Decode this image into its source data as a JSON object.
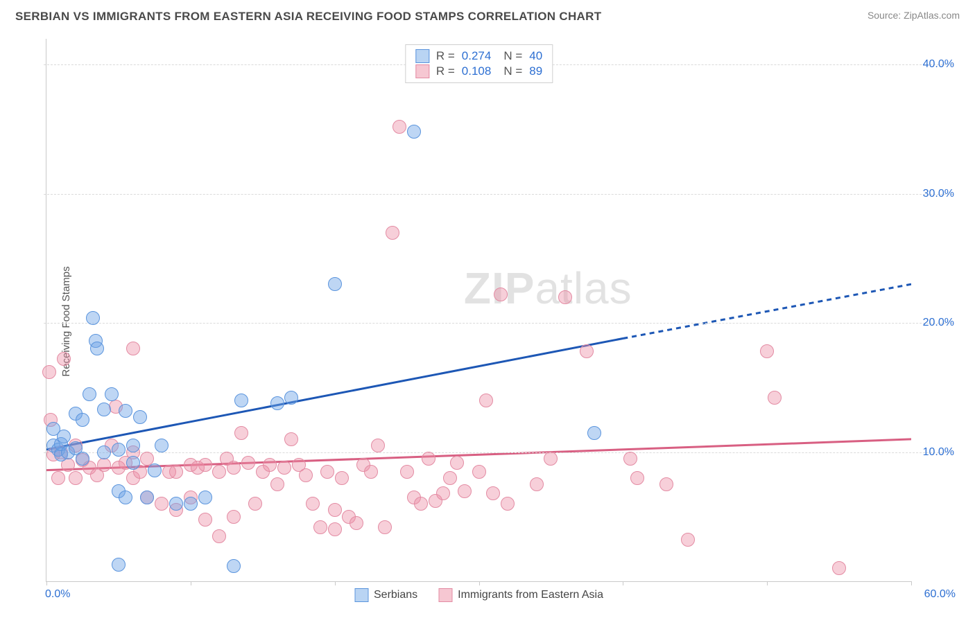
{
  "header": {
    "title": "SERBIAN VS IMMIGRANTS FROM EASTERN ASIA RECEIVING FOOD STAMPS CORRELATION CHART",
    "source": "Source: ZipAtlas.com"
  },
  "chart": {
    "type": "scatter",
    "y_axis_label": "Receiving Food Stamps",
    "watermark_bold": "ZIP",
    "watermark_light": "atlas",
    "background_color": "#ffffff",
    "grid_color": "#dadada",
    "axis_color": "#c9c9c9",
    "tick_label_color": "#2d6fd2",
    "xlim": [
      0,
      60
    ],
    "ylim": [
      0,
      42
    ],
    "ytick_values": [
      10,
      20,
      30,
      40
    ],
    "ytick_labels": [
      "10.0%",
      "20.0%",
      "30.0%",
      "40.0%"
    ],
    "xtick_values": [
      0,
      10,
      20,
      30,
      40,
      50,
      60
    ],
    "xmin_label": "0.0%",
    "xmax_label": "60.0%",
    "legend_top": [
      {
        "swatch_fill": "#b9d4f3",
        "swatch_border": "#5a94dd",
        "R": "0.274",
        "N": "40"
      },
      {
        "swatch_fill": "#f6c7d2",
        "swatch_border": "#e38ba3",
        "R": "0.108",
        "N": "89"
      }
    ],
    "legend_bottom": [
      {
        "swatch_fill": "#b9d4f3",
        "swatch_border": "#5a94dd",
        "label": "Serbians"
      },
      {
        "swatch_fill": "#f6c7d2",
        "swatch_border": "#e38ba3",
        "label": "Immigrants from Eastern Asia"
      }
    ],
    "series": [
      {
        "name": "Serbians",
        "dot_fill": "rgba(110,165,230,0.45)",
        "dot_border": "#5a94dd",
        "dot_radius": 10,
        "trend_color": "#1d57b5",
        "trend_width": 3,
        "trend_solid": {
          "x1": 0,
          "y1": 10.2,
          "x2": 40,
          "y2": 18.8
        },
        "trend_dash": {
          "x1": 40,
          "y1": 18.8,
          "x2": 60,
          "y2": 23.0
        },
        "points": [
          [
            0.5,
            10.5
          ],
          [
            0.8,
            10.2
          ],
          [
            1.0,
            9.8
          ],
          [
            1.0,
            10.6
          ],
          [
            1.2,
            11.2
          ],
          [
            1.5,
            10.0
          ],
          [
            0.5,
            11.8
          ],
          [
            2.0,
            10.3
          ],
          [
            2.0,
            13.0
          ],
          [
            2.5,
            12.5
          ],
          [
            2.5,
            9.5
          ],
          [
            3.0,
            14.5
          ],
          [
            3.2,
            20.4
          ],
          [
            3.4,
            18.6
          ],
          [
            3.5,
            18.0
          ],
          [
            4.0,
            13.3
          ],
          [
            4.0,
            10.0
          ],
          [
            4.5,
            14.5
          ],
          [
            5.0,
            7.0
          ],
          [
            5.0,
            10.2
          ],
          [
            5.0,
            1.3
          ],
          [
            5.5,
            13.2
          ],
          [
            5.5,
            6.5
          ],
          [
            6.0,
            10.5
          ],
          [
            6.0,
            9.2
          ],
          [
            6.5,
            12.7
          ],
          [
            7.0,
            6.5
          ],
          [
            7.5,
            8.6
          ],
          [
            8.0,
            10.5
          ],
          [
            9.0,
            6.0
          ],
          [
            10.0,
            6.0
          ],
          [
            11.0,
            6.5
          ],
          [
            13.0,
            1.2
          ],
          [
            13.5,
            14.0
          ],
          [
            16.0,
            13.8
          ],
          [
            17.0,
            14.2
          ],
          [
            20.0,
            23.0
          ],
          [
            25.5,
            34.8
          ],
          [
            38.0,
            11.5
          ]
        ]
      },
      {
        "name": "Immigrants from Eastern Asia",
        "dot_fill": "rgba(235,140,165,0.42)",
        "dot_border": "#e38ba3",
        "dot_radius": 10,
        "trend_color": "#d85f82",
        "trend_width": 3,
        "trend_solid": {
          "x1": 0,
          "y1": 8.6,
          "x2": 60,
          "y2": 11.0
        },
        "trend_dash": null,
        "points": [
          [
            0.2,
            16.2
          ],
          [
            0.3,
            12.5
          ],
          [
            0.5,
            9.8
          ],
          [
            0.8,
            8.0
          ],
          [
            1.0,
            10.0
          ],
          [
            1.2,
            17.2
          ],
          [
            1.5,
            9.0
          ],
          [
            2.0,
            10.5
          ],
          [
            2.0,
            8.0
          ],
          [
            2.5,
            9.4
          ],
          [
            3.0,
            8.8
          ],
          [
            3.5,
            8.2
          ],
          [
            4.0,
            9.0
          ],
          [
            4.5,
            10.5
          ],
          [
            4.8,
            13.5
          ],
          [
            5.0,
            8.8
          ],
          [
            5.5,
            9.2
          ],
          [
            6.0,
            8.0
          ],
          [
            6.0,
            10.0
          ],
          [
            6.0,
            18.0
          ],
          [
            6.5,
            8.5
          ],
          [
            7.0,
            6.5
          ],
          [
            7.0,
            9.5
          ],
          [
            8.0,
            6.0
          ],
          [
            8.5,
            8.5
          ],
          [
            9.0,
            5.5
          ],
          [
            9.0,
            8.5
          ],
          [
            10.0,
            9.0
          ],
          [
            10.0,
            6.5
          ],
          [
            10.5,
            8.8
          ],
          [
            11.0,
            9.0
          ],
          [
            11.0,
            4.8
          ],
          [
            12.0,
            8.5
          ],
          [
            12.0,
            3.5
          ],
          [
            12.5,
            9.5
          ],
          [
            13.0,
            8.8
          ],
          [
            13.0,
            5.0
          ],
          [
            13.5,
            11.5
          ],
          [
            14.0,
            9.2
          ],
          [
            14.5,
            6.0
          ],
          [
            15.0,
            8.5
          ],
          [
            15.5,
            9.0
          ],
          [
            16.0,
            7.5
          ],
          [
            16.5,
            8.8
          ],
          [
            17.0,
            11.0
          ],
          [
            17.5,
            9.0
          ],
          [
            18.0,
            8.2
          ],
          [
            18.5,
            6.0
          ],
          [
            19.0,
            4.2
          ],
          [
            19.5,
            8.5
          ],
          [
            20.0,
            5.5
          ],
          [
            20.0,
            4.0
          ],
          [
            20.5,
            8.0
          ],
          [
            21.0,
            5.0
          ],
          [
            21.5,
            4.5
          ],
          [
            22.0,
            9.0
          ],
          [
            22.5,
            8.5
          ],
          [
            23.0,
            10.5
          ],
          [
            23.5,
            4.2
          ],
          [
            24.0,
            27.0
          ],
          [
            24.5,
            35.2
          ],
          [
            25.0,
            8.5
          ],
          [
            25.5,
            6.5
          ],
          [
            26.0,
            6.0
          ],
          [
            26.5,
            9.5
          ],
          [
            27.0,
            6.2
          ],
          [
            27.5,
            6.8
          ],
          [
            28.0,
            8.0
          ],
          [
            28.5,
            9.2
          ],
          [
            29.0,
            7.0
          ],
          [
            30.0,
            8.5
          ],
          [
            30.5,
            14.0
          ],
          [
            31.0,
            6.8
          ],
          [
            31.5,
            22.2
          ],
          [
            32.0,
            6.0
          ],
          [
            34.0,
            7.5
          ],
          [
            35.0,
            9.5
          ],
          [
            36.0,
            22.0
          ],
          [
            37.5,
            17.8
          ],
          [
            40.5,
            9.5
          ],
          [
            41.0,
            8.0
          ],
          [
            43.0,
            7.5
          ],
          [
            44.5,
            3.2
          ],
          [
            50.0,
            17.8
          ],
          [
            50.5,
            14.2
          ],
          [
            55.0,
            1.0
          ]
        ]
      }
    ]
  }
}
